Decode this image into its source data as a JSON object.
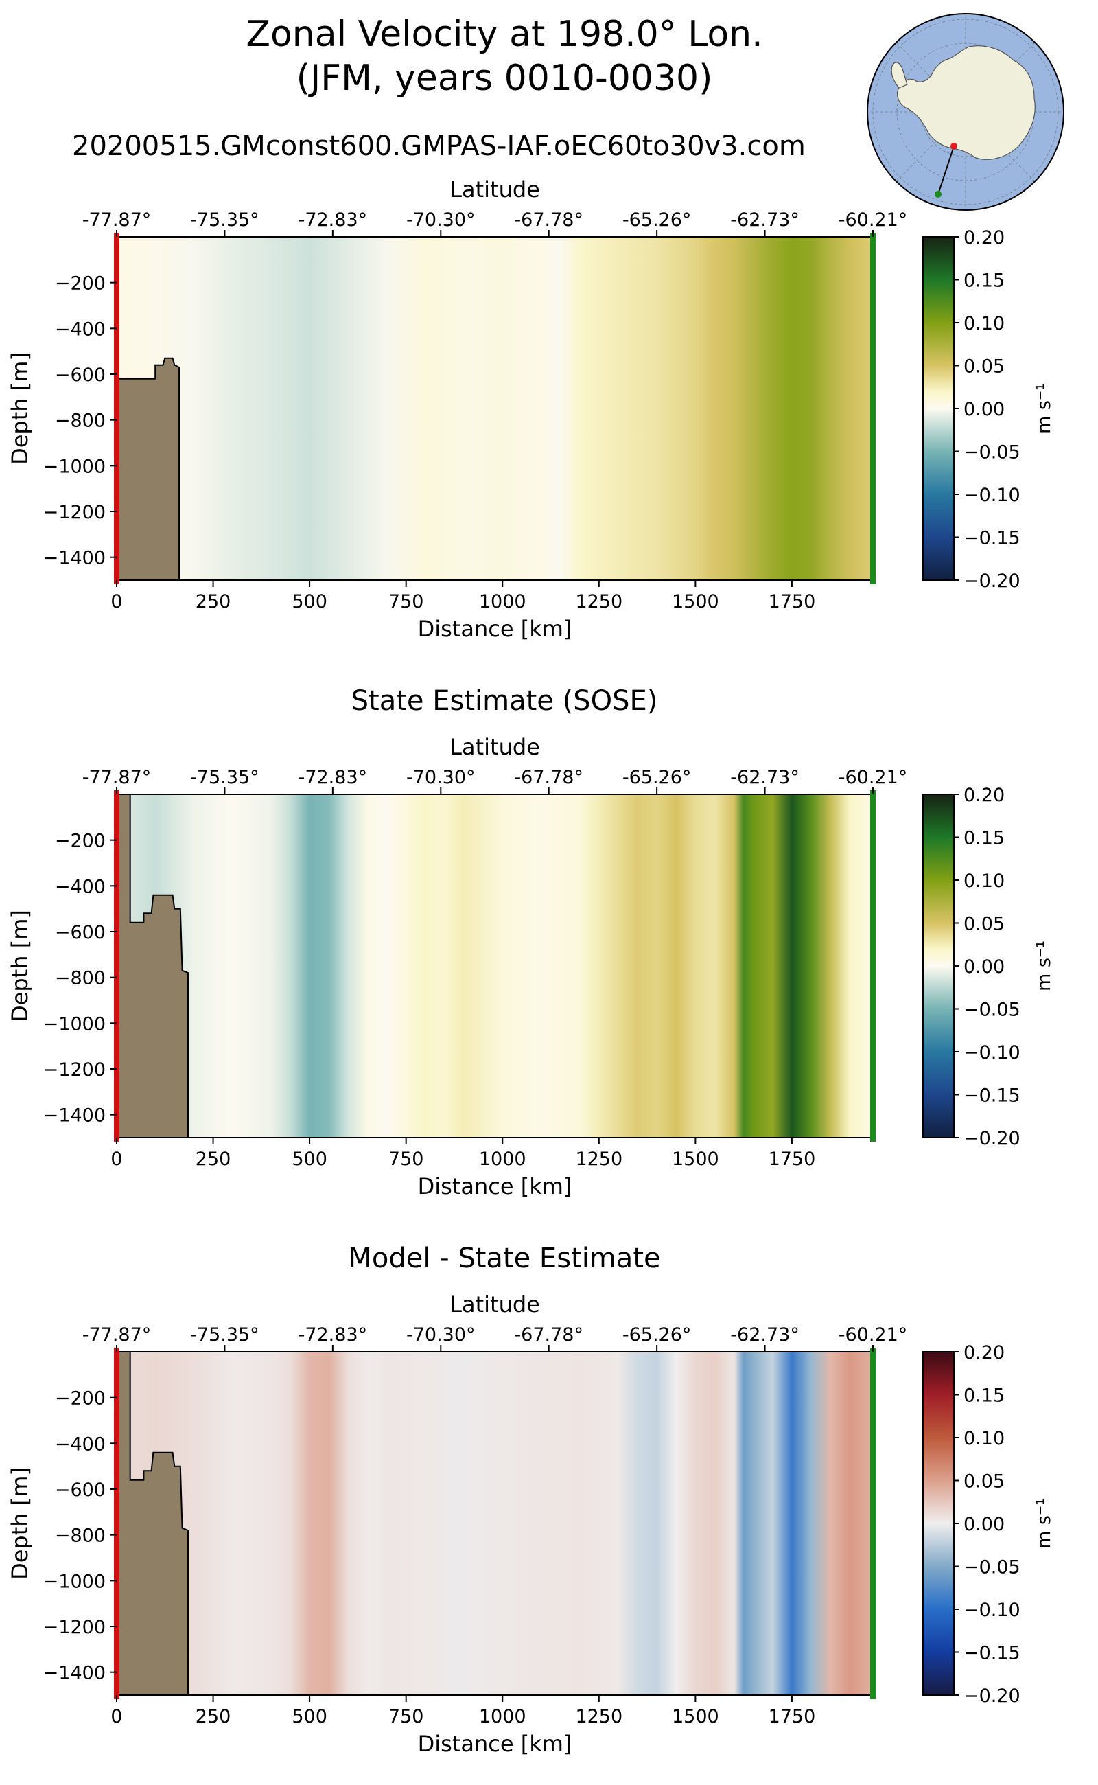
{
  "figure": {
    "title_line1": "Zonal Velocity at 198.0° Lon.",
    "title_line2": "(JFM, years 0010-0030)",
    "run_name": "20200515.GMconst600.GMPAS-IAF.oEC60to30v3.com"
  },
  "inset_map": {
    "description_icon": "antarctica-polar-map-icon",
    "start_marker_color": "#e41a1c",
    "end_marker_color": "#1a8a1a",
    "ocean_color": "#9cb7df",
    "land_color": "#efefdc"
  },
  "chart_data": [
    {
      "type": "heatmap",
      "panel_title": "",
      "xlabel": "Distance [km]",
      "ylabel": "Depth [m]",
      "top_axis_label": "Latitude",
      "top_ticks": [
        "-77.87°",
        "-75.35°",
        "-72.83°",
        "-70.30°",
        "-67.78°",
        "-65.26°",
        "-62.73°",
        "-60.21°"
      ],
      "top_tick_positions_km": [
        0,
        280,
        560,
        840,
        1120,
        1400,
        1680,
        1960
      ],
      "xlim": [
        0,
        1960
      ],
      "ylim": [
        -1500,
        0
      ],
      "x_ticks": [
        0,
        250,
        500,
        750,
        1000,
        1250,
        1500,
        1750
      ],
      "y_ticks": [
        -200,
        -400,
        -600,
        -800,
        -1000,
        -1200,
        -1400
      ],
      "colorbar": {
        "label": "m s⁻¹",
        "min": -0.2,
        "max": 0.2,
        "ticks": [
          "0.20",
          "0.15",
          "0.10",
          "0.05",
          "0.00",
          "−0.05",
          "−0.10",
          "−0.15",
          "−0.20"
        ],
        "cmap": "delta"
      },
      "bathymetry_km_depth": [
        [
          0,
          -620
        ],
        [
          100,
          -620
        ],
        [
          100,
          -560
        ],
        [
          120,
          -560
        ],
        [
          125,
          -530
        ],
        [
          145,
          -530
        ],
        [
          150,
          -560
        ],
        [
          162,
          -570
        ],
        [
          162,
          -1500
        ]
      ],
      "velocity_profile": {
        "x_km": [
          0,
          100,
          200,
          300,
          400,
          500,
          600,
          700,
          800,
          900,
          1000,
          1100,
          1150,
          1200,
          1300,
          1400,
          1500,
          1550,
          1600,
          1650,
          1700,
          1750,
          1800,
          1850,
          1900,
          1960
        ],
        "value": [
          0.005,
          0.003,
          -0.002,
          -0.008,
          -0.012,
          -0.018,
          -0.01,
          -0.002,
          0.01,
          0.006,
          0.008,
          0.004,
          -0.001,
          0.018,
          0.025,
          0.03,
          0.04,
          0.048,
          0.055,
          0.07,
          0.085,
          0.095,
          0.09,
          0.07,
          0.055,
          0.045
        ]
      }
    },
    {
      "type": "heatmap",
      "panel_title": "State Estimate (SOSE)",
      "xlabel": "Distance [km]",
      "ylabel": "Depth [m]",
      "top_axis_label": "Latitude",
      "top_ticks": [
        "-77.87°",
        "-75.35°",
        "-72.83°",
        "-70.30°",
        "-67.78°",
        "-65.26°",
        "-62.73°",
        "-60.21°"
      ],
      "top_tick_positions_km": [
        0,
        280,
        560,
        840,
        1120,
        1400,
        1680,
        1960
      ],
      "xlim": [
        0,
        1960
      ],
      "ylim": [
        -1500,
        0
      ],
      "x_ticks": [
        0,
        250,
        500,
        750,
        1000,
        1250,
        1500,
        1750
      ],
      "y_ticks": [
        -200,
        -400,
        -600,
        -800,
        -1000,
        -1200,
        -1400
      ],
      "colorbar": {
        "label": "m s⁻¹",
        "min": -0.2,
        "max": 0.2,
        "ticks": [
          "0.20",
          "0.15",
          "0.10",
          "0.05",
          "0.00",
          "−0.05",
          "−0.10",
          "−0.15",
          "−0.20"
        ],
        "cmap": "delta"
      },
      "bathymetry_km_depth": [
        [
          0,
          0
        ],
        [
          35,
          0
        ],
        [
          35,
          -560
        ],
        [
          70,
          -560
        ],
        [
          70,
          -520
        ],
        [
          90,
          -520
        ],
        [
          95,
          -440
        ],
        [
          145,
          -440
        ],
        [
          150,
          -500
        ],
        [
          165,
          -500
        ],
        [
          170,
          -770
        ],
        [
          185,
          -780
        ],
        [
          185,
          -1500
        ]
      ],
      "velocity_profile": {
        "x_km": [
          0,
          100,
          200,
          300,
          400,
          450,
          500,
          550,
          600,
          650,
          700,
          800,
          850,
          900,
          1000,
          1100,
          1200,
          1250,
          1300,
          1350,
          1400,
          1450,
          1500,
          1550,
          1600,
          1625,
          1650,
          1700,
          1750,
          1800,
          1850,
          1900,
          1960
        ],
        "value": [
          -0.01,
          -0.02,
          -0.005,
          0.0,
          -0.005,
          -0.02,
          -0.05,
          -0.045,
          -0.015,
          0.005,
          0.0,
          0.02,
          0.015,
          0.025,
          0.01,
          0.005,
          0.01,
          0.025,
          0.035,
          0.045,
          0.04,
          0.05,
          0.035,
          0.03,
          0.05,
          0.13,
          0.11,
          0.09,
          0.17,
          0.12,
          0.06,
          0.02,
          0.005
        ]
      }
    },
    {
      "type": "heatmap",
      "panel_title": "Model - State Estimate",
      "xlabel": "Distance [km]",
      "ylabel": "Depth [m]",
      "top_axis_label": "Latitude",
      "top_ticks": [
        "-77.87°",
        "-75.35°",
        "-72.83°",
        "-70.30°",
        "-67.78°",
        "-65.26°",
        "-62.73°",
        "-60.21°"
      ],
      "top_tick_positions_km": [
        0,
        280,
        560,
        840,
        1120,
        1400,
        1680,
        1960
      ],
      "xlim": [
        0,
        1960
      ],
      "ylim": [
        -1500,
        0
      ],
      "x_ticks": [
        0,
        250,
        500,
        750,
        1000,
        1250,
        1500,
        1750
      ],
      "y_ticks": [
        -200,
        -400,
        -600,
        -800,
        -1000,
        -1200,
        -1400
      ],
      "colorbar": {
        "label": "m s⁻¹",
        "min": -0.2,
        "max": 0.2,
        "ticks": [
          "0.20",
          "0.15",
          "0.10",
          "0.05",
          "0.00",
          "−0.05",
          "−0.10",
          "−0.15",
          "−0.20"
        ],
        "cmap": "balance"
      },
      "bathymetry_km_depth": [
        [
          0,
          0
        ],
        [
          35,
          0
        ],
        [
          35,
          -560
        ],
        [
          70,
          -560
        ],
        [
          70,
          -520
        ],
        [
          90,
          -520
        ],
        [
          95,
          -440
        ],
        [
          145,
          -440
        ],
        [
          150,
          -500
        ],
        [
          165,
          -500
        ],
        [
          170,
          -770
        ],
        [
          185,
          -780
        ],
        [
          185,
          -1500
        ]
      ],
      "velocity_profile": {
        "x_km": [
          0,
          100,
          200,
          300,
          400,
          450,
          500,
          550,
          600,
          650,
          700,
          800,
          900,
          1000,
          1100,
          1200,
          1300,
          1350,
          1400,
          1450,
          1500,
          1550,
          1600,
          1625,
          1650,
          1700,
          1750,
          1800,
          1850,
          1900,
          1960
        ],
        "value": [
          0.01,
          0.015,
          0.01,
          0.003,
          0.005,
          0.01,
          0.035,
          0.04,
          0.01,
          0.002,
          0.005,
          0.004,
          -0.002,
          0.004,
          0.005,
          0.006,
          0.004,
          -0.015,
          -0.02,
          0.0,
          0.015,
          0.02,
          0.005,
          -0.06,
          -0.045,
          -0.02,
          -0.09,
          -0.04,
          0.035,
          0.055,
          0.04
        ]
      }
    }
  ]
}
